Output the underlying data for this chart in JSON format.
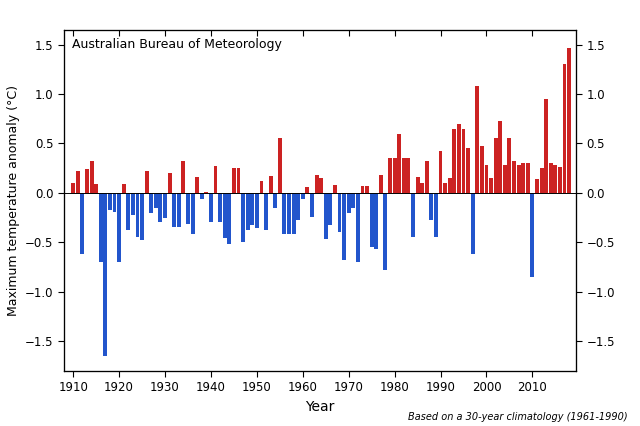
{
  "title": "Australian Bureau of Meteorology",
  "xlabel": "Year",
  "ylabel": "Maximum temperature anomaly (°C)",
  "footnote": "Based on a 30-year climatology (1961-1990)",
  "bar_color_positive": "#CC2222",
  "bar_color_negative": "#2255CC",
  "ylim": [
    -1.8,
    1.65
  ],
  "yticks": [
    -1.5,
    -1.0,
    -0.5,
    0.0,
    0.5,
    1.0,
    1.5
  ],
  "years": [
    1910,
    1911,
    1912,
    1913,
    1914,
    1915,
    1916,
    1917,
    1918,
    1919,
    1920,
    1921,
    1922,
    1923,
    1924,
    1925,
    1926,
    1927,
    1928,
    1929,
    1930,
    1931,
    1932,
    1933,
    1934,
    1935,
    1936,
    1937,
    1938,
    1939,
    1940,
    1941,
    1942,
    1943,
    1944,
    1945,
    1946,
    1947,
    1948,
    1949,
    1950,
    1951,
    1952,
    1953,
    1954,
    1955,
    1956,
    1957,
    1958,
    1959,
    1960,
    1961,
    1962,
    1963,
    1964,
    1965,
    1966,
    1967,
    1968,
    1969,
    1970,
    1971,
    1972,
    1973,
    1974,
    1975,
    1976,
    1977,
    1978,
    1979,
    1980,
    1981,
    1982,
    1983,
    1984,
    1985,
    1986,
    1987,
    1988,
    1989,
    1990,
    1991,
    1992,
    1993,
    1994,
    1995,
    1996,
    1997,
    1998,
    1999,
    2000,
    2001,
    2002,
    2003,
    2004,
    2005,
    2006,
    2007,
    2008,
    2009,
    2010,
    2011,
    2012,
    2013,
    2014,
    2015,
    2016,
    2017,
    2018
  ],
  "values": [
    0.1,
    0.22,
    -0.62,
    0.24,
    0.32,
    0.09,
    -0.7,
    -1.65,
    -0.17,
    -0.19,
    -0.7,
    0.09,
    -0.38,
    -0.22,
    -0.45,
    -0.48,
    0.22,
    -0.2,
    -0.15,
    -0.3,
    -0.26,
    0.2,
    -0.35,
    -0.35,
    0.32,
    -0.32,
    -0.42,
    0.16,
    -0.06,
    0.01,
    -0.3,
    0.27,
    -0.3,
    -0.46,
    -0.52,
    0.25,
    0.25,
    -0.5,
    -0.38,
    -0.33,
    -0.36,
    0.12,
    -0.38,
    0.17,
    -0.15,
    0.55,
    -0.42,
    -0.42,
    -0.42,
    -0.28,
    -0.06,
    0.06,
    -0.24,
    0.18,
    0.15,
    -0.47,
    -0.33,
    0.08,
    -0.4,
    -0.68,
    -0.2,
    -0.15,
    -0.7,
    0.07,
    0.07,
    -0.55,
    -0.57,
    0.18,
    -0.78,
    0.35,
    0.35,
    0.6,
    0.35,
    0.35,
    -0.45,
    0.16,
    0.1,
    0.32,
    -0.28,
    -0.45,
    0.42,
    0.1,
    0.15,
    0.65,
    0.7,
    0.65,
    0.45,
    -0.62,
    1.08,
    0.47,
    0.28,
    0.15,
    0.55,
    0.73,
    0.28,
    0.55,
    0.32,
    0.28,
    0.3,
    0.3,
    -0.85,
    0.14,
    0.25,
    0.95,
    0.3,
    0.28,
    0.26,
    1.3,
    1.47
  ],
  "background_color": "#ffffff",
  "spine_color": "#000000"
}
